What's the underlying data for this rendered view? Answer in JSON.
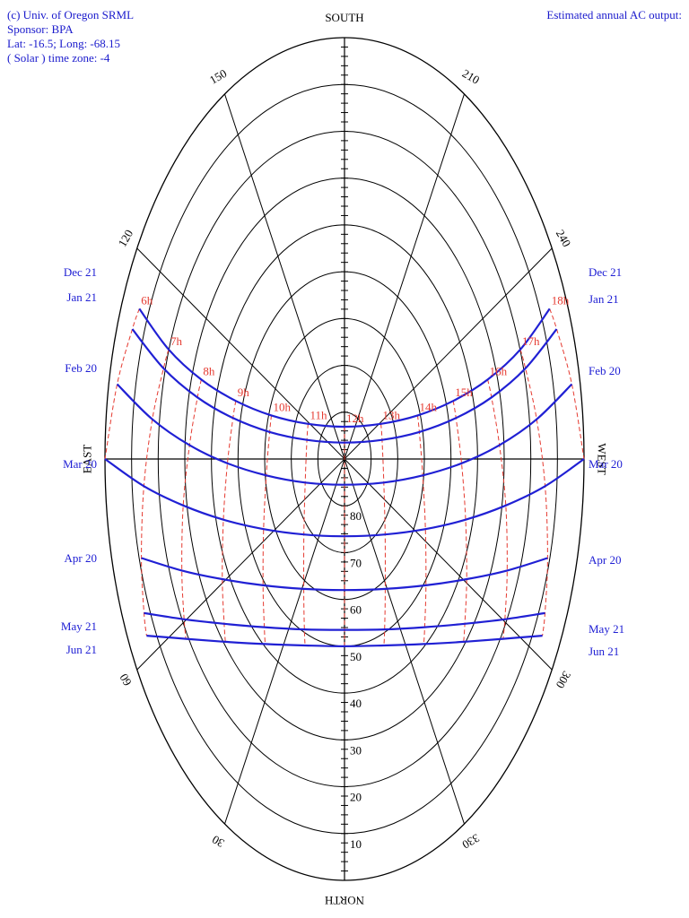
{
  "chart_data": {
    "type": "sunpath",
    "header_left": [
      "(c) Univ. of Oregon SRML",
      "Sponsor: BPA",
      "Lat: -16.5; Long: -68.15",
      "( Solar ) time zone: -4"
    ],
    "header_right": "Estimated annual AC output:",
    "cardinal": {
      "south": "SOUTH",
      "north": "NORTH",
      "east": "EAST",
      "west": "WEST"
    },
    "altitude_lim": [
      0,
      90
    ],
    "altitude_ticks": [
      10,
      20,
      30,
      40,
      50,
      60,
      70,
      80
    ],
    "azimuth_ticks": [
      30,
      60,
      120,
      150,
      210,
      240,
      300,
      330
    ],
    "hours": [
      "6h",
      "7h",
      "8h",
      "9h",
      "10h",
      "11h",
      "12h",
      "13h",
      "14h",
      "15h",
      "16h",
      "17h",
      "18h"
    ],
    "hour_line_color": "#e53a30",
    "series": [
      {
        "name": "Dec 21",
        "color": "#2020d4",
        "altitude": [
          6.5,
          19.9,
          33.6,
          47.3,
          61.0,
          74.4,
          83.1,
          74.4,
          61.0,
          47.3,
          33.6,
          19.9,
          6.5
        ],
        "azimuth": [
          112.6,
          109.5,
          107.5,
          106.9,
          108.7,
          118.8,
          180,
          241.2,
          251.3,
          253.1,
          252.5,
          250.5,
          247.4
        ]
      },
      {
        "name": "Jan 21",
        "color": "#2020d4",
        "altitude": [
          5.6,
          19.3,
          33.2,
          47.2,
          61.3,
          75.3,
          86.5,
          75.3,
          61.3,
          47.2,
          33.2,
          19.3,
          5.6
        ],
        "azimuth": [
          109.2,
          105.9,
          103.4,
          101.8,
          101.6,
          106.1,
          180,
          253.9,
          258.4,
          258.2,
          256.6,
          254.1,
          250.8
        ]
      },
      {
        "name": "Feb 20",
        "color": "#2020d4",
        "altitude": [
          3.1,
          17.3,
          31.7,
          46.0,
          60.4,
          74.4,
          84.5,
          74.4,
          60.4,
          46.0,
          31.7,
          17.3,
          3.1
        ],
        "azimuth": [
          100.6,
          96.7,
          92.9,
          88.8,
          83.2,
          71.2,
          0,
          288.8,
          276.8,
          271.2,
          267.1,
          263.3,
          259.4
        ]
      },
      {
        "name": "Mar 20",
        "color": "#2020d4",
        "altitude": [
          0,
          14.4,
          28.6,
          42.7,
          56.1,
          67.8,
          73.5,
          67.8,
          56.1,
          42.7,
          28.6,
          14.4,
          0
        ],
        "azimuth": [
          90,
          85.6,
          80.7,
          74.1,
          63.8,
          43.4,
          0,
          316.6,
          296.2,
          285.9,
          279.3,
          274.4,
          270
        ]
      },
      {
        "name": "Apr 20",
        "color": "#2020d4",
        "altitude": [
          null,
          10.8,
          24.4,
          37.4,
          49.2,
          58.3,
          62.0,
          58.3,
          49.2,
          37.4,
          24.4,
          10.8,
          null
        ],
        "azimuth": [
          null,
          74.5,
          68.7,
          60.8,
          48.6,
          28.9,
          0,
          331.1,
          311.4,
          299.2,
          291.3,
          285.5,
          null
        ]
      },
      {
        "name": "May 21",
        "color": "#2020d4",
        "altitude": [
          null,
          7.8,
          20.7,
          32.7,
          43.1,
          50.6,
          53.5,
          50.6,
          43.1,
          32.7,
          20.7,
          7.8,
          null
        ],
        "azimuth": [
          null,
          66.4,
          60.4,
          52.1,
          40.0,
          22.5,
          0,
          337.5,
          320.0,
          307.9,
          299.6,
          293.6,
          null
        ]
      },
      {
        "name": "Jun 21",
        "color": "#2020d4",
        "altitude": [
          null,
          6.6,
          19.1,
          30.6,
          40.5,
          47.5,
          50.0,
          47.5,
          40.5,
          30.6,
          19.1,
          6.6,
          null
        ],
        "azimuth": [
          null,
          63.1,
          57.2,
          48.9,
          37.0,
          20.4,
          0,
          339.6,
          323.0,
          311.1,
          302.8,
          296.9,
          null
        ]
      }
    ]
  }
}
